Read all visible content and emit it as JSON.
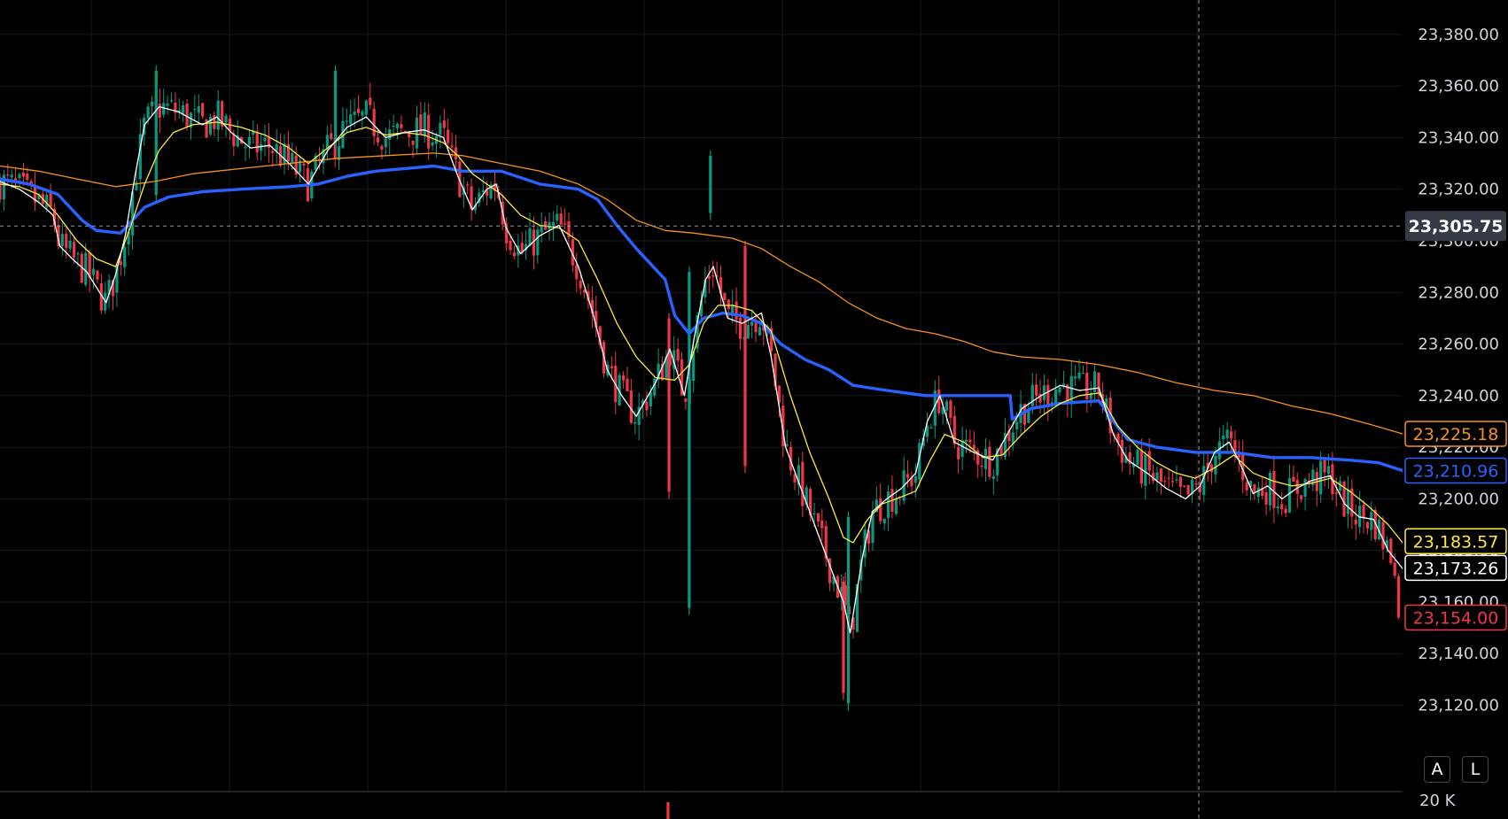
{
  "chart_data": {
    "type": "candlestick",
    "price_scale": {
      "ticks": [
        "23,380.00",
        "23,360.00",
        "23,340.00",
        "23,320.00",
        "23,300.00",
        "23,280.00",
        "23,260.00",
        "23,240.00",
        "23,220.00",
        "23,200.00",
        "23,180.00",
        "23,160.00",
        "23,140.00",
        "23,120.00"
      ],
      "range": [
        23108,
        23410
      ]
    },
    "volume_scale_label": "20 K",
    "crosshair": {
      "price_label": "23,305.75",
      "price": 23305.75
    },
    "price_badges": [
      {
        "text": "23,225.18",
        "value": 23225.18,
        "color": "#f7931a",
        "style": "outline"
      },
      {
        "text": "23,210.96",
        "value": 23210.96,
        "color": "#2962ff",
        "style": "outline"
      },
      {
        "text": "23,183.57",
        "value": 23183.57,
        "color": "#ffeb3b",
        "style": "outline"
      },
      {
        "text": "23,173.26",
        "value": 23173.26,
        "color": "#ffffff",
        "style": "outline"
      },
      {
        "text": "23,154.00",
        "value": 23154.0,
        "color": "#f23645",
        "style": "outline"
      }
    ],
    "series": [
      {
        "kind": "candles",
        "up_color": "#089981",
        "down_color": "#f23645"
      },
      {
        "kind": "line",
        "color": "#ffffff",
        "width": 1.3,
        "points": [
          [
            0,
            23323
          ],
          [
            20,
            23320
          ],
          [
            40,
            23315
          ],
          [
            55,
            23310
          ],
          [
            62,
            23298
          ],
          [
            75,
            23293
          ],
          [
            90,
            23288
          ],
          [
            110,
            23276
          ],
          [
            120,
            23287
          ],
          [
            130,
            23302
          ],
          [
            140,
            23325
          ],
          [
            150,
            23345
          ],
          [
            165,
            23352
          ],
          [
            185,
            23350
          ],
          [
            210,
            23345
          ],
          [
            225,
            23348
          ],
          [
            240,
            23342
          ],
          [
            260,
            23336
          ],
          [
            280,
            23337
          ],
          [
            300,
            23330
          ],
          [
            320,
            23322
          ],
          [
            340,
            23335
          ],
          [
            360,
            23344
          ],
          [
            380,
            23348
          ],
          [
            400,
            23340
          ],
          [
            420,
            23342
          ],
          [
            440,
            23343
          ],
          [
            460,
            23340
          ],
          [
            475,
            23325
          ],
          [
            490,
            23312
          ],
          [
            505,
            23320
          ],
          [
            515,
            23322
          ],
          [
            525,
            23305
          ],
          [
            540,
            23295
          ],
          [
            560,
            23302
          ],
          [
            580,
            23306
          ],
          [
            600,
            23290
          ],
          [
            615,
            23272
          ],
          [
            630,
            23250
          ],
          [
            645,
            23240
          ],
          [
            660,
            23232
          ],
          [
            680,
            23245
          ],
          [
            695,
            23258
          ],
          [
            710,
            23240
          ],
          [
            720,
            23262
          ],
          [
            732,
            23285
          ],
          [
            740,
            23290
          ],
          [
            755,
            23270
          ],
          [
            770,
            23268
          ],
          [
            790,
            23272
          ],
          [
            800,
            23255
          ],
          [
            815,
            23220
          ],
          [
            830,
            23205
          ],
          [
            845,
            23190
          ],
          [
            860,
            23175
          ],
          [
            875,
            23160
          ],
          [
            882,
            23148
          ],
          [
            895,
            23178
          ],
          [
            905,
            23195
          ],
          [
            920,
            23200
          ],
          [
            935,
            23204
          ],
          [
            950,
            23210
          ],
          [
            962,
            23230
          ],
          [
            975,
            23240
          ],
          [
            990,
            23222
          ],
          [
            1010,
            23218
          ],
          [
            1030,
            23215
          ],
          [
            1045,
            23225
          ],
          [
            1060,
            23235
          ],
          [
            1080,
            23240
          ],
          [
            1100,
            23244
          ],
          [
            1120,
            23242
          ],
          [
            1140,
            23243
          ],
          [
            1155,
            23225
          ],
          [
            1170,
            23215
          ],
          [
            1190,
            23210
          ],
          [
            1210,
            23204
          ],
          [
            1230,
            23200
          ],
          [
            1245,
            23205
          ],
          [
            1260,
            23218
          ],
          [
            1275,
            23222
          ],
          [
            1285,
            23215
          ],
          [
            1300,
            23202
          ],
          [
            1315,
            23205
          ],
          [
            1330,
            23200
          ],
          [
            1345,
            23204
          ],
          [
            1360,
            23207
          ],
          [
            1380,
            23209
          ],
          [
            1395,
            23198
          ],
          [
            1410,
            23193
          ],
          [
            1425,
            23192
          ],
          [
            1440,
            23180
          ],
          [
            1455,
            23173
          ]
        ]
      },
      {
        "kind": "line",
        "color": "#ffeb3b",
        "width": 1.3,
        "points": [
          [
            0,
            23322
          ],
          [
            20,
            23321
          ],
          [
            40,
            23318
          ],
          [
            60,
            23310
          ],
          [
            80,
            23300
          ],
          [
            100,
            23293
          ],
          [
            120,
            23290
          ],
          [
            135,
            23305
          ],
          [
            150,
            23322
          ],
          [
            165,
            23335
          ],
          [
            180,
            23342
          ],
          [
            200,
            23345
          ],
          [
            225,
            23346
          ],
          [
            250,
            23344
          ],
          [
            275,
            23341
          ],
          [
            300,
            23336
          ],
          [
            320,
            23330
          ],
          [
            340,
            23336
          ],
          [
            360,
            23342
          ],
          [
            380,
            23344
          ],
          [
            400,
            23341
          ],
          [
            420,
            23342
          ],
          [
            440,
            23341
          ],
          [
            460,
            23338
          ],
          [
            475,
            23333
          ],
          [
            490,
            23326
          ],
          [
            505,
            23322
          ],
          [
            520,
            23318
          ],
          [
            540,
            23310
          ],
          [
            560,
            23306
          ],
          [
            580,
            23305
          ],
          [
            600,
            23300
          ],
          [
            620,
            23285
          ],
          [
            640,
            23268
          ],
          [
            660,
            23255
          ],
          [
            680,
            23247
          ],
          [
            700,
            23246
          ],
          [
            715,
            23252
          ],
          [
            730,
            23268
          ],
          [
            745,
            23275
          ],
          [
            760,
            23275
          ],
          [
            780,
            23273
          ],
          [
            800,
            23265
          ],
          [
            820,
            23240
          ],
          [
            840,
            23218
          ],
          [
            860,
            23200
          ],
          [
            875,
            23185
          ],
          [
            885,
            23183
          ],
          [
            900,
            23192
          ],
          [
            915,
            23198
          ],
          [
            930,
            23200
          ],
          [
            950,
            23203
          ],
          [
            965,
            23215
          ],
          [
            980,
            23225
          ],
          [
            1000,
            23222
          ],
          [
            1020,
            23216
          ],
          [
            1040,
            23217
          ],
          [
            1060,
            23225
          ],
          [
            1080,
            23232
          ],
          [
            1100,
            23237
          ],
          [
            1120,
            23240
          ],
          [
            1140,
            23241
          ],
          [
            1160,
            23228
          ],
          [
            1180,
            23220
          ],
          [
            1200,
            23214
          ],
          [
            1220,
            23210
          ],
          [
            1240,
            23208
          ],
          [
            1260,
            23212
          ],
          [
            1280,
            23217
          ],
          [
            1300,
            23210
          ],
          [
            1320,
            23207
          ],
          [
            1340,
            23205
          ],
          [
            1360,
            23206
          ],
          [
            1380,
            23208
          ],
          [
            1400,
            23203
          ],
          [
            1420,
            23197
          ],
          [
            1440,
            23190
          ],
          [
            1455,
            23183
          ]
        ]
      },
      {
        "kind": "line",
        "color": "#2962ff",
        "width": 3.4,
        "points": [
          [
            0,
            23324
          ],
          [
            30,
            23322
          ],
          [
            60,
            23318
          ],
          [
            85,
            23308
          ],
          [
            100,
            23304
          ],
          [
            125,
            23303
          ],
          [
            150,
            23313
          ],
          [
            175,
            23317
          ],
          [
            210,
            23319
          ],
          [
            250,
            23320
          ],
          [
            300,
            23321
          ],
          [
            330,
            23322
          ],
          [
            360,
            23325
          ],
          [
            390,
            23327
          ],
          [
            420,
            23328
          ],
          [
            450,
            23329
          ],
          [
            480,
            23327
          ],
          [
            520,
            23327
          ],
          [
            560,
            23322
          ],
          [
            600,
            23320
          ],
          [
            620,
            23316
          ],
          [
            640,
            23306
          ],
          [
            660,
            23297
          ],
          [
            690,
            23285
          ],
          [
            700,
            23271
          ],
          [
            715,
            23264
          ],
          [
            730,
            23270
          ],
          [
            750,
            23272
          ],
          [
            770,
            23271
          ],
          [
            790,
            23268
          ],
          [
            810,
            23260
          ],
          [
            835,
            23254
          ],
          [
            860,
            23250
          ],
          [
            885,
            23244
          ],
          [
            920,
            23242
          ],
          [
            960,
            23240
          ],
          [
            1000,
            23240
          ],
          [
            1048,
            23240
          ],
          [
            1050,
            23231
          ],
          [
            1070,
            23235
          ],
          [
            1100,
            23237
          ],
          [
            1140,
            23238
          ],
          [
            1155,
            23230
          ],
          [
            1170,
            23223
          ],
          [
            1200,
            23220
          ],
          [
            1240,
            23218
          ],
          [
            1280,
            23218
          ],
          [
            1320,
            23216
          ],
          [
            1360,
            23216
          ],
          [
            1400,
            23215
          ],
          [
            1430,
            23214
          ],
          [
            1455,
            23210.96
          ]
        ]
      },
      {
        "kind": "line",
        "color": "#f7931a",
        "width": 1.3,
        "points": [
          [
            0,
            23329
          ],
          [
            40,
            23327
          ],
          [
            80,
            23324
          ],
          [
            120,
            23321
          ],
          [
            160,
            23323
          ],
          [
            200,
            23326
          ],
          [
            250,
            23328
          ],
          [
            300,
            23330
          ],
          [
            350,
            23332
          ],
          [
            400,
            23333
          ],
          [
            450,
            23334
          ],
          [
            480,
            23333
          ],
          [
            520,
            23330
          ],
          [
            560,
            23327
          ],
          [
            600,
            23322
          ],
          [
            630,
            23316
          ],
          [
            660,
            23308
          ],
          [
            690,
            23304
          ],
          [
            720,
            23303
          ],
          [
            760,
            23301
          ],
          [
            790,
            23297
          ],
          [
            820,
            23290
          ],
          [
            850,
            23284
          ],
          [
            880,
            23276
          ],
          [
            910,
            23270
          ],
          [
            940,
            23266
          ],
          [
            970,
            23264
          ],
          [
            1000,
            23261
          ],
          [
            1030,
            23257
          ],
          [
            1060,
            23255
          ],
          [
            1100,
            23254
          ],
          [
            1140,
            23252
          ],
          [
            1180,
            23249
          ],
          [
            1220,
            23245
          ],
          [
            1260,
            23242
          ],
          [
            1300,
            23240
          ],
          [
            1340,
            23236
          ],
          [
            1380,
            23233
          ],
          [
            1420,
            23229
          ],
          [
            1455,
            23225.18
          ]
        ]
      }
    ]
  },
  "controls": {
    "auto_scale_label": "A",
    "log_scale_label": "L"
  }
}
